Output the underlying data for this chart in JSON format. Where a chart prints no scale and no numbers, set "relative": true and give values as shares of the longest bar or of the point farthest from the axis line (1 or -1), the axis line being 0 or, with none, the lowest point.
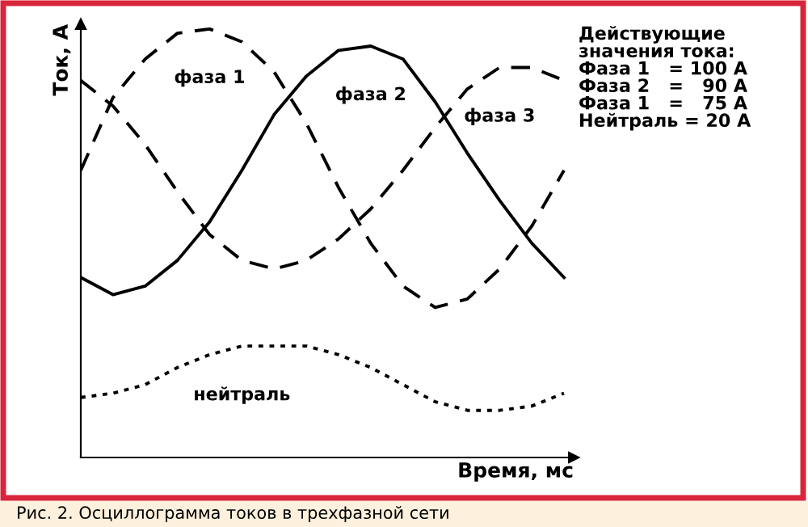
{
  "chart_data": {
    "type": "line",
    "relative": true,
    "xlabel": "Время, мс",
    "ylabel": "Ток, А",
    "categories": [
      null,
      null,
      null,
      null,
      null,
      null,
      null,
      null,
      null,
      null,
      null,
      null,
      null,
      null,
      null,
      null
    ],
    "series": [
      {
        "name": "фаза 1",
        "color": "#000000",
        "line_style": "dashed",
        "values": [
          0.67,
          0.84,
          0.93,
          0.99,
          1.0,
          0.97,
          0.9,
          0.78,
          0.63,
          0.5,
          0.4,
          0.35,
          0.37,
          0.44,
          0.54,
          0.67
        ]
      },
      {
        "name": "фаза 2",
        "color": "#000000",
        "line_style": "solid",
        "values": [
          0.42,
          0.38,
          0.4,
          0.46,
          0.55,
          0.67,
          0.8,
          0.89,
          0.95,
          0.96,
          0.93,
          0.83,
          0.71,
          0.6,
          0.5,
          0.42
        ]
      },
      {
        "name": "фаза 3",
        "color": "#000000",
        "line_style": "dashed",
        "values": [
          0.88,
          0.82,
          0.73,
          0.62,
          0.52,
          0.46,
          0.44,
          0.46,
          0.51,
          0.58,
          0.67,
          0.77,
          0.86,
          0.91,
          0.91,
          0.88
        ]
      },
      {
        "name": "нейтраль",
        "color": "#000000",
        "line_style": "dotted",
        "values": [
          0.14,
          0.15,
          0.17,
          0.21,
          0.24,
          0.26,
          0.26,
          0.26,
          0.24,
          0.21,
          0.17,
          0.13,
          0.11,
          0.11,
          0.12,
          0.15
        ]
      }
    ],
    "annotations": [
      "Действующие\nзначения тока:\nФаза 1   = 100 А\nФаза 2   =   90 А\nФаза 1   =   75 А\nНейтраль = 20 А",
      "Рис. 2. Осциллограмма токов в трехфазной сети"
    ],
    "legend": false,
    "marker": "none"
  }
}
